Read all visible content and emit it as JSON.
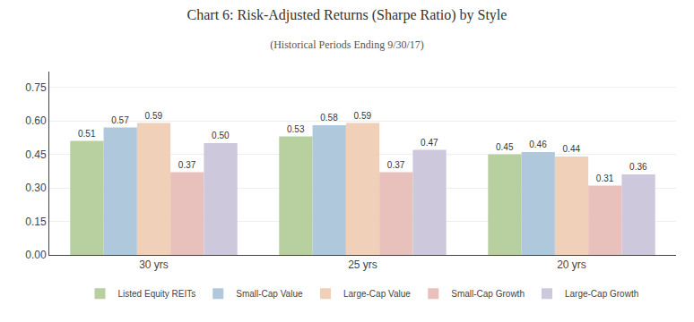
{
  "chart_data": {
    "type": "bar",
    "title": "Chart 6: Risk-Adjusted Returns (Sharpe Ratio) by Style",
    "subtitle": "(Historical Periods Ending 9/30/17)",
    "categories": [
      "30 yrs",
      "25 yrs",
      "20 yrs"
    ],
    "series": [
      {
        "name": "Listed Equity REITs",
        "color": "#b8cfa0",
        "values": [
          0.51,
          0.53,
          0.45
        ],
        "value_labels": [
          "0.51",
          "0.53",
          "0.45"
        ]
      },
      {
        "name": "Small-Cap Value",
        "color": "#b0c8dc",
        "values": [
          0.57,
          0.58,
          0.46
        ],
        "value_labels": [
          "0.57",
          "0.58",
          "0.46"
        ]
      },
      {
        "name": "Large-Cap Value",
        "color": "#f0d0b8",
        "values": [
          0.59,
          0.59,
          0.44
        ],
        "value_labels": [
          "0.59",
          "0.59",
          "0.44"
        ]
      },
      {
        "name": "Small-Cap Growth",
        "color": "#e8c0bc",
        "values": [
          0.37,
          0.37,
          0.31
        ],
        "value_labels": [
          "0.37",
          "0.37",
          "0.31"
        ]
      },
      {
        "name": "Large-Cap Growth",
        "color": "#cec8dc",
        "values": [
          0.5,
          0.47,
          0.36
        ],
        "value_labels": [
          "0.50",
          "0.47",
          "0.36"
        ]
      }
    ],
    "ylim": [
      0.0,
      0.82
    ],
    "yticks": [
      {
        "value": 0.0,
        "label": "0.00"
      },
      0.15,
      {
        "value": 0.3,
        "label": "0.30"
      },
      0.45,
      {
        "value": 0.6,
        "label": "0.60"
      },
      0.75
    ],
    "grid": true,
    "legend": "bottom",
    "data_labels": true
  }
}
